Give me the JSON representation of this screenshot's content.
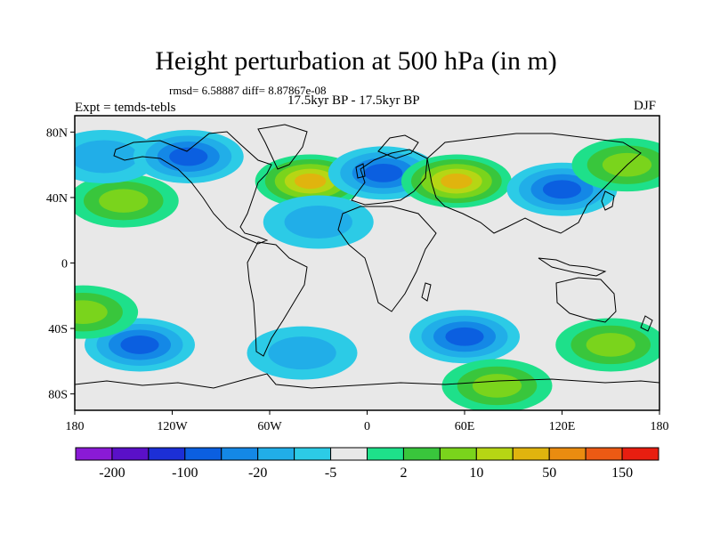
{
  "title": "Height perturbation at 500 hPa (in m)",
  "stats_text": "rmsd= 6.58887 diff= 8.87867e-08",
  "experiment_label": "Expt = temds-tebls",
  "period_label": "17.5kyr BP - 17.5kyr BP",
  "season_label": "DJF",
  "chart_data": {
    "type": "heatmap",
    "title": "Height perturbation at 500 hPa (in m)",
    "projection": "cylindrical equidistant",
    "xlim": [
      -180,
      180
    ],
    "ylim": [
      -90,
      90
    ],
    "x_ticks": [
      {
        "value": -180,
        "label": "180"
      },
      {
        "value": -120,
        "label": "120W"
      },
      {
        "value": -60,
        "label": "60W"
      },
      {
        "value": 0,
        "label": "0"
      },
      {
        "value": 60,
        "label": "60E"
      },
      {
        "value": 120,
        "label": "120E"
      },
      {
        "value": 180,
        "label": "180"
      }
    ],
    "y_ticks": [
      {
        "value": 80,
        "label": "80N"
      },
      {
        "value": 40,
        "label": "40N"
      },
      {
        "value": 0,
        "label": "0"
      },
      {
        "value": -40,
        "label": "40S"
      },
      {
        "value": -80,
        "label": "80S"
      }
    ],
    "colorbar": {
      "colors": [
        "#8a1ad6",
        "#5a10c8",
        "#1c2fd6",
        "#0b5fe0",
        "#1488e6",
        "#21aee8",
        "#2ccbe6",
        "#e8e8e8",
        "#1ee08a",
        "#39c63c",
        "#7ad41c",
        "#b6d614",
        "#e0b40e",
        "#ea8c10",
        "#ec5a14",
        "#e81e10"
      ],
      "labels": [
        {
          "boundary": 1,
          "label": "-200"
        },
        {
          "boundary": 3,
          "label": "-100"
        },
        {
          "boundary": 5,
          "label": "-20"
        },
        {
          "boundary": 7,
          "label": "-5"
        },
        {
          "boundary": 9,
          "label": "2"
        },
        {
          "boundary": 11,
          "label": "10"
        },
        {
          "boundary": 13,
          "label": "50"
        },
        {
          "boundary": 15,
          "label": "150"
        }
      ]
    },
    "anomalies": [
      {
        "name": "n-pacific-band",
        "lon": -150,
        "lat": 38,
        "level": 10
      },
      {
        "name": "aleutian-low",
        "lon": -162,
        "lat": 65,
        "level": -5
      },
      {
        "name": "n-canada-low",
        "lon": -110,
        "lat": 65,
        "level": -20
      },
      {
        "name": "n-atlantic-high",
        "lon": -35,
        "lat": 50,
        "level": 50
      },
      {
        "name": "europe-low",
        "lon": 10,
        "lat": 55,
        "level": -20
      },
      {
        "name": "n-atlantic-low",
        "lon": -30,
        "lat": 25,
        "level": -5
      },
      {
        "name": "siberia-high",
        "lon": 55,
        "lat": 50,
        "level": 50
      },
      {
        "name": "e-asia-low",
        "lon": 120,
        "lat": 45,
        "level": -20
      },
      {
        "name": "n-pacific-east-high",
        "lon": 160,
        "lat": 60,
        "level": 10
      },
      {
        "name": "s-pacific-low",
        "lon": -140,
        "lat": -50,
        "level": -20
      },
      {
        "name": "s-pacific-high",
        "lon": -175,
        "lat": -30,
        "level": 10
      },
      {
        "name": "s-atlantic-low",
        "lon": -40,
        "lat": -55,
        "level": -5
      },
      {
        "name": "s-indian-low",
        "lon": 60,
        "lat": -45,
        "level": -20
      },
      {
        "name": "s-australia-high",
        "lon": 150,
        "lat": -50,
        "level": 10
      },
      {
        "name": "antarctic-band",
        "lon": 80,
        "lat": -75,
        "level": 10
      }
    ]
  }
}
